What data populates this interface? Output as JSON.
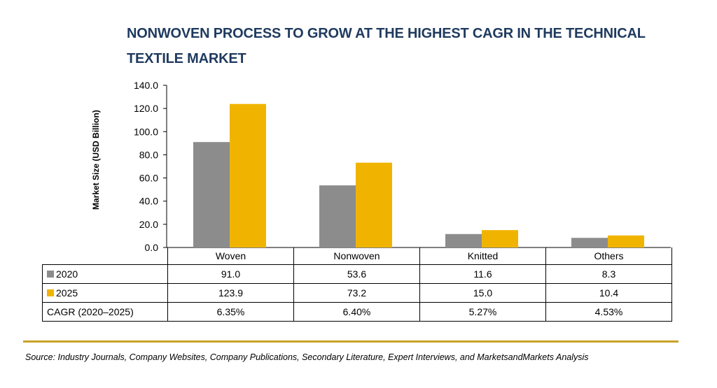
{
  "title": "NONWOVEN PROCESS TO GROW AT THE HIGHEST CAGR IN THE TECHNICAL TEXTILE MARKET",
  "chart_data": {
    "type": "bar",
    "title": "NONWOVEN PROCESS TO GROW AT THE HIGHEST CAGR IN THE TECHNICAL TEXTILE MARKET",
    "xlabel": "",
    "ylabel": "Market Size (USD Billion)",
    "ylim": [
      0,
      140
    ],
    "yticks": [
      "0.0",
      "20.0",
      "40.0",
      "60.0",
      "80.0",
      "100.0",
      "120.0",
      "140.0"
    ],
    "categories": [
      "Woven",
      "Nonwoven",
      "Knitted",
      "Others"
    ],
    "series": [
      {
        "name": "2020",
        "color": "#8c8c8c",
        "values": [
          91.0,
          53.6,
          11.6,
          8.3
        ],
        "labels": [
          "91.0",
          "53.6",
          "11.6",
          "8.3"
        ]
      },
      {
        "name": "2025",
        "color": "#f0b400",
        "values": [
          123.9,
          73.2,
          15.0,
          10.4
        ],
        "labels": [
          "123.9",
          "73.2",
          "15.0",
          "10.4"
        ]
      }
    ],
    "cagr_label": "CAGR (2020–2025)",
    "cagr": [
      "6.35%",
      "6.40%",
      "5.27%",
      "4.53%"
    ],
    "grid": false,
    "legend": "data-table"
  },
  "source": "Source: Industry Journals, Company Websites, Company Publications, Secondary Literature, Expert Interviews, and MarketsandMarkets Analysis"
}
